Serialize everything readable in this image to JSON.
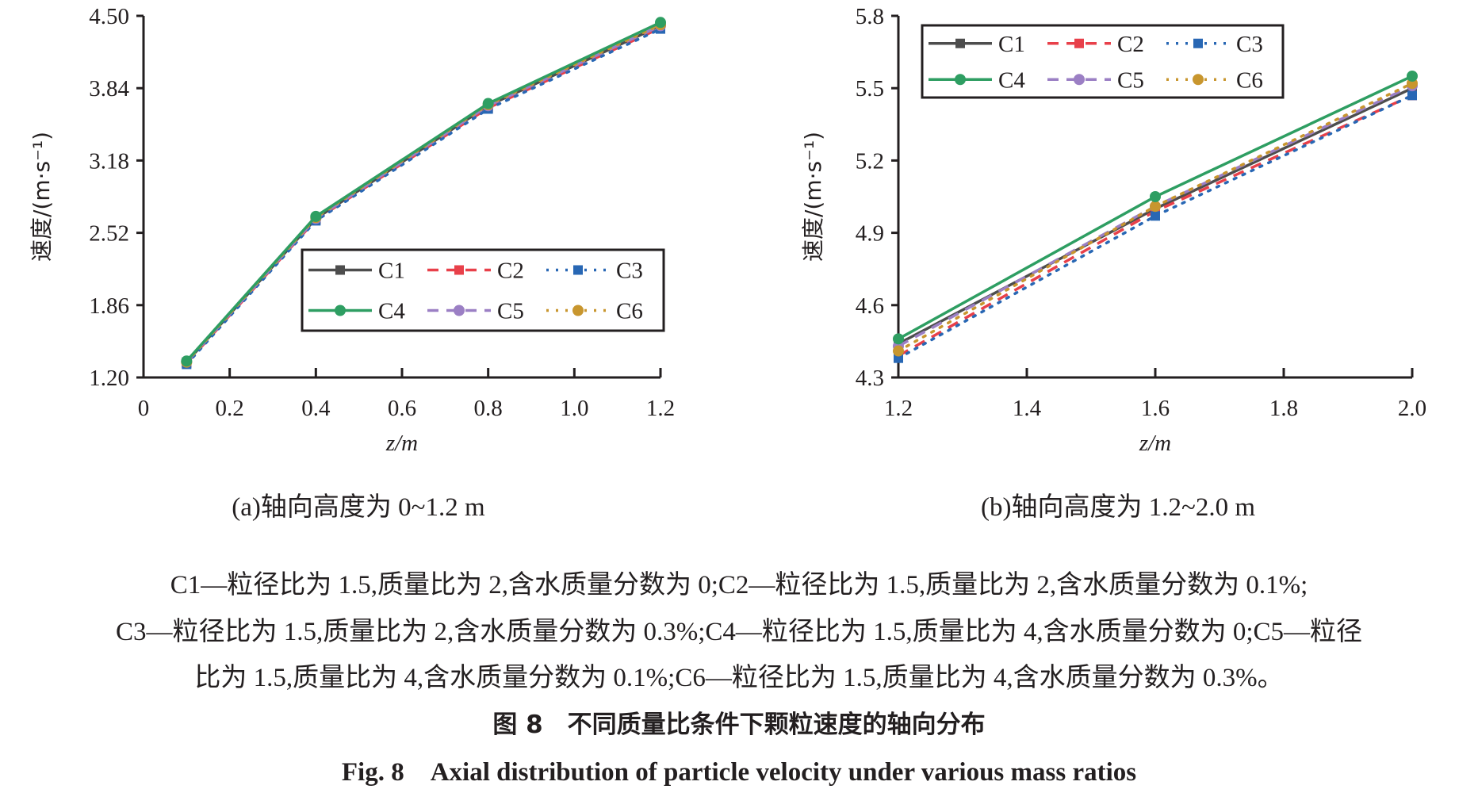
{
  "chart_data": [
    {
      "type": "line",
      "subtitle": "(a)轴向高度为 0~1.2 m",
      "xlabel": "z/m",
      "ylabel": "速度/(m·s⁻¹)",
      "xlim": [
        0,
        1.2
      ],
      "ylim": [
        1.2,
        4.5
      ],
      "xticks": [
        "0",
        "0.2",
        "0.4",
        "0.6",
        "0.8",
        "1.0",
        "1.2"
      ],
      "yticks": [
        "1.20",
        "1.86",
        "2.52",
        "3.18",
        "3.84",
        "4.50"
      ],
      "legend_position": "bottom-right",
      "x": [
        0.1,
        0.4,
        0.8,
        1.2
      ],
      "series": [
        {
          "name": "C1",
          "values": [
            1.34,
            2.65,
            3.68,
            4.41
          ]
        },
        {
          "name": "C2",
          "values": [
            1.33,
            2.64,
            3.66,
            4.39
          ]
        },
        {
          "name": "C3",
          "values": [
            1.32,
            2.63,
            3.65,
            4.38
          ]
        },
        {
          "name": "C4",
          "values": [
            1.35,
            2.67,
            3.7,
            4.44
          ]
        },
        {
          "name": "C5",
          "values": [
            1.34,
            2.65,
            3.68,
            4.41
          ]
        },
        {
          "name": "C6",
          "values": [
            1.34,
            2.66,
            3.69,
            4.42
          ]
        }
      ]
    },
    {
      "type": "line",
      "subtitle": "(b)轴向高度为 1.2~2.0 m",
      "xlabel": "z/m",
      "ylabel": "速度/(m·s⁻¹)",
      "xlim": [
        1.2,
        2.0
      ],
      "ylim": [
        4.3,
        5.8
      ],
      "xticks": [
        "1.2",
        "1.4",
        "1.6",
        "1.8",
        "2.0"
      ],
      "yticks": [
        "4.3",
        "4.6",
        "4.9",
        "5.2",
        "5.5",
        "5.8"
      ],
      "legend_position": "top-left",
      "x": [
        1.2,
        1.6,
        2.0
      ],
      "series": [
        {
          "name": "C1",
          "values": [
            4.44,
            5.0,
            5.5
          ]
        },
        {
          "name": "C2",
          "values": [
            4.39,
            4.99,
            5.47
          ]
        },
        {
          "name": "C3",
          "values": [
            4.38,
            4.97,
            5.47
          ]
        },
        {
          "name": "C4",
          "values": [
            4.46,
            5.05,
            5.55
          ]
        },
        {
          "name": "C5",
          "values": [
            4.43,
            5.01,
            5.51
          ]
        },
        {
          "name": "C6",
          "values": [
            4.41,
            5.01,
            5.52
          ]
        }
      ]
    }
  ],
  "series_style": [
    {
      "color": "#4d4d4d",
      "dash": "",
      "marker": "square"
    },
    {
      "color": "#e8404a",
      "dash": "14 10",
      "marker": "square"
    },
    {
      "color": "#2867b4",
      "dash": "3 9",
      "marker": "square"
    },
    {
      "color": "#2e9e62",
      "dash": "",
      "marker": "circle"
    },
    {
      "color": "#9b7fc4",
      "dash": "14 10",
      "marker": "circle"
    },
    {
      "color": "#c8962e",
      "dash": "3 9",
      "marker": "circle"
    }
  ],
  "notes": [
    "C1—粒径比为 1.5,质量比为 2,含水质量分数为 0;C2—粒径比为 1.5,质量比为 2,含水质量分数为 0.1%;",
    "C3—粒径比为 1.5,质量比为 2,含水质量分数为 0.3%;C4—粒径比为 1.5,质量比为 4,含水质量分数为 0;C5—粒径",
    "比为 1.5,质量比为 4,含水质量分数为 0.1%;C6—粒径比为 1.5,质量比为 4,含水质量分数为 0.3%。"
  ],
  "figure_title_cn": "图 8　不同质量比条件下颗粒速度的轴向分布",
  "figure_title_en": "Fig. 8　Axial distribution of particle velocity under various mass ratios"
}
